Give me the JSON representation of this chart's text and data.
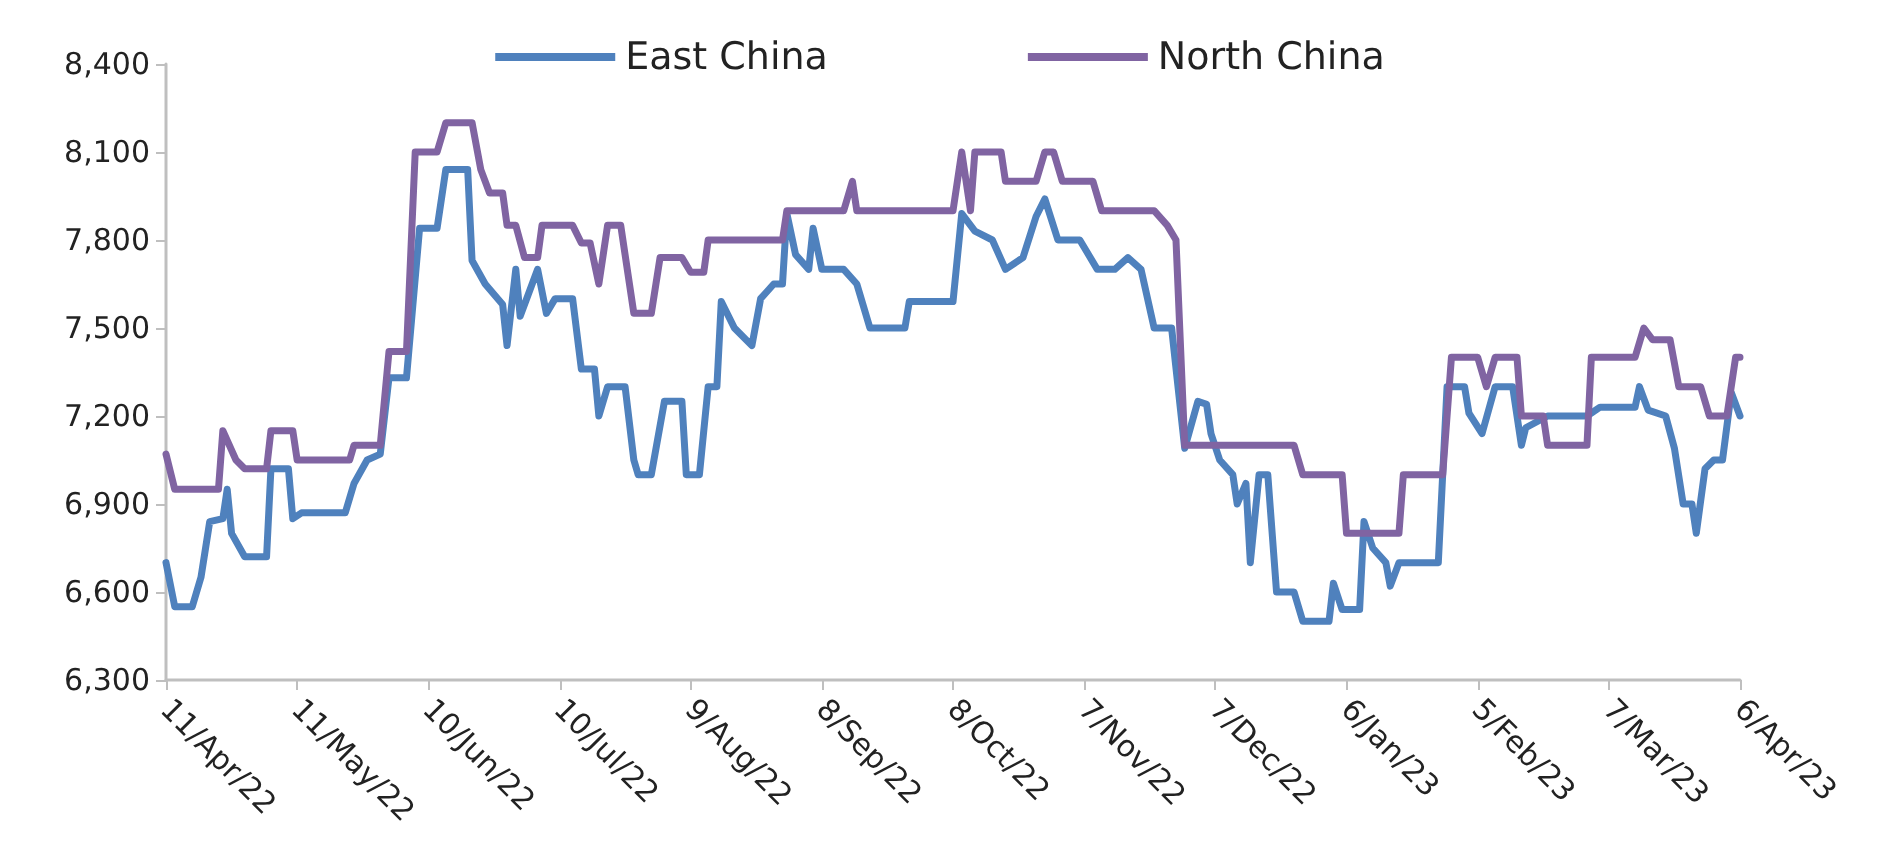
{
  "chart_data": {
    "type": "line",
    "marker": "none",
    "line_style": "solid",
    "legend": "top",
    "grid": false,
    "xlim": [
      "2022-04-11",
      "2023-04-06"
    ],
    "xticks": [
      {
        "value": "2022-04-11",
        "label": "11/Apr/22"
      },
      {
        "value": "2022-05-11",
        "label": "11/May/22"
      },
      {
        "value": "2022-06-10",
        "label": "10/Jun/22"
      },
      {
        "value": "2022-07-10",
        "label": "10/Jul/22"
      },
      {
        "value": "2022-08-09",
        "label": "9/Aug/22"
      },
      {
        "value": "2022-09-08",
        "label": "8/Sep/22"
      },
      {
        "value": "2022-10-08",
        "label": "8/Oct/22"
      },
      {
        "value": "2022-11-07",
        "label": "7/Nov/22"
      },
      {
        "value": "2022-12-07",
        "label": "7/Dec/22"
      },
      {
        "value": "2023-01-06",
        "label": "6/Jan/23"
      },
      {
        "value": "2023-02-05",
        "label": "5/Feb/23"
      },
      {
        "value": "2023-03-07",
        "label": "7/Mar/23"
      },
      {
        "value": "2023-04-06",
        "label": "6/Apr/23"
      }
    ],
    "ylim": [
      6300,
      8400
    ],
    "yticks": [
      {
        "value": 6300,
        "label": "6,300"
      },
      {
        "value": 6600,
        "label": "6,600"
      },
      {
        "value": 6900,
        "label": "6,900"
      },
      {
        "value": 7200,
        "label": "7,200"
      },
      {
        "value": 7500,
        "label": "7,500"
      },
      {
        "value": 7800,
        "label": "7,800"
      },
      {
        "value": 8100,
        "label": "8,100"
      },
      {
        "value": 8400,
        "label": "8,400"
      }
    ],
    "series": [
      {
        "name": "East China",
        "color": "#4f81bd",
        "x": [
          "2022-04-11",
          "2022-04-13",
          "2022-04-17",
          "2022-04-19",
          "2022-04-21",
          "2022-04-24",
          "2022-04-25",
          "2022-04-26",
          "2022-04-29",
          "2022-05-04",
          "2022-05-05",
          "2022-05-09",
          "2022-05-10",
          "2022-05-12",
          "2022-05-22",
          "2022-05-24",
          "2022-05-27",
          "2022-05-30",
          "2022-06-01",
          "2022-06-05",
          "2022-06-08",
          "2022-06-12",
          "2022-06-14",
          "2022-06-19",
          "2022-06-20",
          "2022-06-23",
          "2022-06-27",
          "2022-06-28",
          "2022-06-30",
          "2022-07-01",
          "2022-07-05",
          "2022-07-07",
          "2022-07-09",
          "2022-07-13",
          "2022-07-15",
          "2022-07-18",
          "2022-07-19",
          "2022-07-21",
          "2022-07-25",
          "2022-07-27",
          "2022-07-28",
          "2022-07-31",
          "2022-08-03",
          "2022-08-07",
          "2022-08-08",
          "2022-08-11",
          "2022-08-13",
          "2022-08-15",
          "2022-08-16",
          "2022-08-19",
          "2022-08-23",
          "2022-08-25",
          "2022-08-28",
          "2022-08-30",
          "2022-08-31",
          "2022-09-02",
          "2022-09-05",
          "2022-09-06",
          "2022-09-08",
          "2022-09-13",
          "2022-09-16",
          "2022-09-19",
          "2022-09-27",
          "2022-09-28",
          "2022-10-08",
          "2022-10-10",
          "2022-10-13",
          "2022-10-17",
          "2022-10-20",
          "2022-10-24",
          "2022-10-27",
          "2022-10-29",
          "2022-11-01",
          "2022-11-06",
          "2022-11-10",
          "2022-11-14",
          "2022-11-17",
          "2022-11-20",
          "2022-11-23",
          "2022-11-27",
          "2022-11-30",
          "2022-12-03",
          "2022-12-05",
          "2022-12-06",
          "2022-12-08",
          "2022-12-11",
          "2022-12-12",
          "2022-12-14",
          "2022-12-15",
          "2022-12-17",
          "2022-12-19",
          "2022-12-21",
          "2022-12-25",
          "2022-12-27",
          "2023-01-02",
          "2023-01-03",
          "2023-01-05",
          "2023-01-09",
          "2023-01-10",
          "2023-01-12",
          "2023-01-15",
          "2023-01-16",
          "2023-01-18",
          "2023-01-27",
          "2023-01-29",
          "2023-02-02",
          "2023-02-03",
          "2023-02-06",
          "2023-02-09",
          "2023-02-13",
          "2023-02-15",
          "2023-02-16",
          "2023-02-21",
          "2023-03-02",
          "2023-03-05",
          "2023-03-13",
          "2023-03-14",
          "2023-03-16",
          "2023-03-20",
          "2023-03-22",
          "2023-03-24",
          "2023-03-26",
          "2023-03-27",
          "2023-03-29",
          "2023-03-31",
          "2023-04-02",
          "2023-04-04",
          "2023-04-06"
        ],
        "values": [
          6700,
          6550,
          6550,
          6650,
          6840,
          6850,
          6950,
          6800,
          6720,
          6720,
          7020,
          7020,
          6850,
          6870,
          6870,
          6970,
          7050,
          7070,
          7330,
          7330,
          7840,
          7840,
          8040,
          8040,
          7730,
          7650,
          7580,
          7440,
          7700,
          7540,
          7700,
          7550,
          7600,
          7600,
          7360,
          7360,
          7200,
          7300,
          7300,
          7050,
          7000,
          7000,
          7250,
          7250,
          7000,
          7000,
          7300,
          7300,
          7590,
          7500,
          7440,
          7600,
          7650,
          7650,
          7890,
          7750,
          7700,
          7840,
          7700,
          7700,
          7650,
          7500,
          7500,
          7590,
          7590,
          7890,
          7830,
          7800,
          7700,
          7740,
          7880,
          7940,
          7800,
          7800,
          7700,
          7700,
          7740,
          7700,
          7500,
          7500,
          7090,
          7250,
          7240,
          7140,
          7050,
          7000,
          6900,
          6970,
          6700,
          7000,
          7000,
          6600,
          6600,
          6500,
          6500,
          6630,
          6540,
          6540,
          6840,
          6750,
          6700,
          6620,
          6700,
          6700,
          7300,
          7300,
          7210,
          7140,
          7300,
          7300,
          7100,
          7160,
          7200,
          7200,
          7230,
          7230,
          7300,
          7220,
          7200,
          7090,
          6900,
          6900,
          6800,
          7020,
          7050,
          7050,
          7280,
          7200
        ]
      },
      {
        "name": "North China",
        "color": "#8064a2",
        "x": [
          "2022-04-11",
          "2022-04-13",
          "2022-04-23",
          "2022-04-24",
          "2022-04-27",
          "2022-04-29",
          "2022-05-04",
          "2022-05-05",
          "2022-05-10",
          "2022-05-11",
          "2022-05-23",
          "2022-05-24",
          "2022-05-30",
          "2022-06-01",
          "2022-06-05",
          "2022-06-07",
          "2022-06-12",
          "2022-06-14",
          "2022-06-20",
          "2022-06-22",
          "2022-06-24",
          "2022-06-27",
          "2022-06-28",
          "2022-06-30",
          "2022-07-02",
          "2022-07-05",
          "2022-07-06",
          "2022-07-13",
          "2022-07-15",
          "2022-07-17",
          "2022-07-19",
          "2022-07-21",
          "2022-07-24",
          "2022-07-26",
          "2022-07-27",
          "2022-07-31",
          "2022-08-02",
          "2022-08-07",
          "2022-08-09",
          "2022-08-12",
          "2022-08-13",
          "2022-08-30",
          "2022-08-31",
          "2022-09-13",
          "2022-09-15",
          "2022-09-16",
          "2022-10-08",
          "2022-10-10",
          "2022-10-12",
          "2022-10-13",
          "2022-10-19",
          "2022-10-20",
          "2022-10-27",
          "2022-10-29",
          "2022-10-31",
          "2022-11-02",
          "2022-11-09",
          "2022-11-11",
          "2022-11-23",
          "2022-11-26",
          "2022-11-28",
          "2022-11-30",
          "2022-12-25",
          "2022-12-27",
          "2023-01-05",
          "2023-01-06",
          "2023-01-18",
          "2023-01-19",
          "2023-01-28",
          "2023-01-30",
          "2023-02-05",
          "2023-02-07",
          "2023-02-09",
          "2023-02-14",
          "2023-02-15",
          "2023-02-20",
          "2023-02-21",
          "2023-03-02",
          "2023-03-03",
          "2023-03-13",
          "2023-03-15",
          "2023-03-17",
          "2023-03-21",
          "2023-03-23",
          "2023-03-28",
          "2023-03-30",
          "2023-04-03",
          "2023-04-05",
          "2023-04-06"
        ],
        "values": [
          7070,
          6950,
          6950,
          7150,
          7050,
          7020,
          7020,
          7150,
          7150,
          7050,
          7050,
          7100,
          7100,
          7420,
          7420,
          8100,
          8100,
          8200,
          8200,
          8040,
          7960,
          7960,
          7850,
          7850,
          7740,
          7740,
          7850,
          7850,
          7790,
          7790,
          7650,
          7850,
          7850,
          7650,
          7550,
          7550,
          7740,
          7740,
          7690,
          7690,
          7800,
          7800,
          7900,
          7900,
          8000,
          7900,
          7900,
          8100,
          7900,
          8100,
          8100,
          8000,
          8000,
          8100,
          8100,
          8000,
          8000,
          7900,
          7900,
          7850,
          7800,
          7100,
          7100,
          7000,
          7000,
          6800,
          6800,
          7000,
          7000,
          7400,
          7400,
          7300,
          7400,
          7400,
          7200,
          7200,
          7100,
          7100,
          7400,
          7400,
          7500,
          7460,
          7460,
          7300,
          7300,
          7200,
          7200,
          7400,
          7400
        ]
      }
    ]
  }
}
